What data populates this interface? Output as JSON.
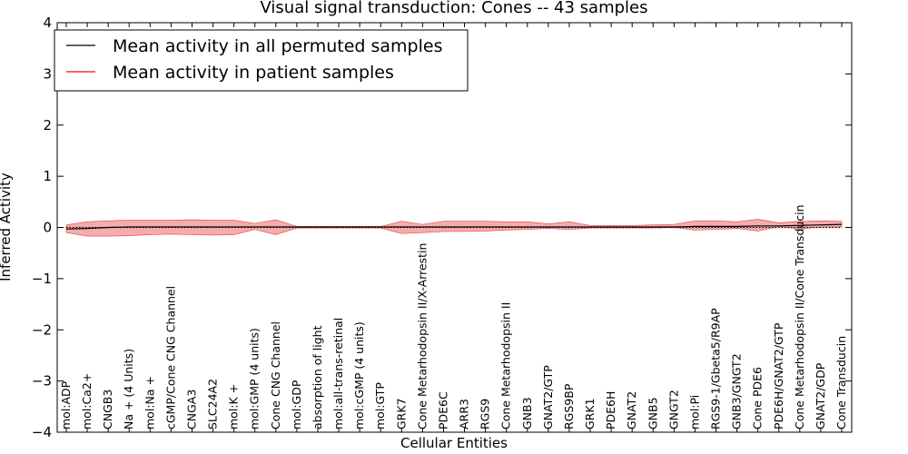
{
  "chart_data": {
    "type": "line",
    "title": "Visual signal transduction: Cones -- 43 samples",
    "xlabel": "Cellular Entities",
    "ylabel": "Inferred Activity",
    "ylim": [
      -4,
      4
    ],
    "yticks": [
      -4,
      -3,
      -2,
      -1,
      0,
      1,
      2,
      3,
      4
    ],
    "ytick_labels": [
      "−4",
      "−3",
      "−2",
      "−1",
      "0",
      "1",
      "2",
      "3",
      "4"
    ],
    "categories": [
      "mol:ADP",
      "mol:Ca2+",
      "CNGB3",
      "Na + (4 Units)",
      "mol:Na +",
      "cGMP/Cone CNG Channel",
      "CNGA3",
      "SLC24A2",
      "mol:K +",
      "mol:GMP (4 units)",
      "Cone CNG Channel",
      "mol:GDP",
      "absorption of light",
      "mol:all-trans-retinal",
      "mol:cGMP (4 units)",
      "mol:GTP",
      "GRK7",
      "Cone Metarhodopsin II/X-Arrestin",
      "PDE6C",
      "ARR3",
      "RGS9",
      "Cone Metarhodopsin II",
      "GNB3",
      "GNAT2/GTP",
      "RGS9BP",
      "GRK1",
      "PDE6H",
      "GNAT2",
      "GNB5",
      "GNGT2",
      "mol:Pi",
      "RGS9-1/Gbeta5/R9AP",
      "GNB3/GNGT2",
      "Cone PDE6",
      "PDE6H/GNAT2/GTP",
      "Cone Metarhodopsin II/Cone Transducin",
      "GNAT2/GDP",
      "Cone Transducin"
    ],
    "series": [
      {
        "name": "Mean activity in all permuted samples",
        "color": "#000000",
        "style": "dotted",
        "values": [
          0,
          0,
          0,
          0,
          0,
          0,
          0,
          0,
          0,
          0,
          0,
          0,
          0,
          0,
          0,
          0,
          0,
          0,
          0,
          0,
          0,
          0,
          0,
          0,
          0,
          0,
          0,
          0,
          0,
          0,
          0,
          0,
          0,
          0,
          0,
          0,
          0,
          0
        ]
      },
      {
        "name": "Mean activity in patient samples",
        "color": "#000000",
        "style": "solid",
        "values": [
          -0.03,
          -0.02,
          0.0,
          0.01,
          0.01,
          0.01,
          0.01,
          0.01,
          0.01,
          0.01,
          0.01,
          0.01,
          0.01,
          0.01,
          0.01,
          0.01,
          0.01,
          0.01,
          0.01,
          0.01,
          0.01,
          0.01,
          0.01,
          0.01,
          0.01,
          0.01,
          0.01,
          0.01,
          0.01,
          0.01,
          0.02,
          0.02,
          0.02,
          0.03,
          0.03,
          0.04,
          0.05,
          0.06
        ]
      }
    ],
    "band": {
      "color": "#f08080",
      "upper": [
        0.05,
        0.11,
        0.13,
        0.14,
        0.14,
        0.14,
        0.15,
        0.14,
        0.14,
        0.08,
        0.15,
        0.02,
        0.02,
        0.02,
        0.02,
        0.02,
        0.12,
        0.06,
        0.12,
        0.12,
        0.12,
        0.11,
        0.11,
        0.07,
        0.11,
        0.04,
        0.04,
        0.04,
        0.05,
        0.06,
        0.13,
        0.13,
        0.11,
        0.16,
        0.09,
        0.12,
        0.13,
        0.12
      ],
      "lower": [
        -0.1,
        -0.17,
        -0.17,
        -0.16,
        -0.14,
        -0.13,
        -0.14,
        -0.15,
        -0.14,
        -0.04,
        -0.14,
        -0.01,
        -0.01,
        -0.01,
        -0.01,
        -0.01,
        -0.12,
        -0.1,
        -0.08,
        -0.08,
        -0.07,
        -0.05,
        -0.04,
        -0.02,
        -0.04,
        -0.01,
        -0.01,
        -0.01,
        -0.01,
        0.0,
        -0.05,
        -0.04,
        -0.02,
        -0.07,
        0.02,
        -0.03,
        0.01,
        0.01
      ]
    },
    "gray_band": {
      "upper": 0.02,
      "lower": -0.02
    },
    "legend": {
      "position": "top-left",
      "entries": [
        {
          "label": "Mean activity in all permuted samples",
          "color": "#000000"
        },
        {
          "label": "Mean activity in patient samples",
          "color": "#ff0000"
        }
      ]
    },
    "grid": false
  }
}
